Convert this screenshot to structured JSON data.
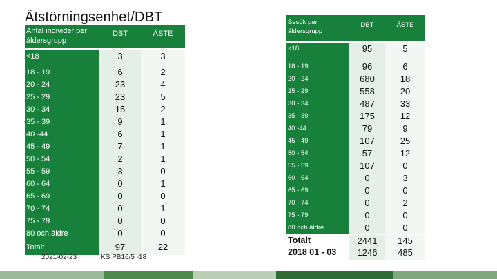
{
  "title": "Ätstörningsenhet/DBT",
  "left_table": {
    "header": {
      "label": "Antal individer per åldersgrupp",
      "col_dbt": "DBT",
      "col_aste": "ÄSTE"
    },
    "rows": [
      {
        "label": "<18",
        "dbt": "3",
        "aste": "3"
      },
      {
        "label": "18 - 19",
        "dbt": "6",
        "aste": "2"
      },
      {
        "label": "20 - 24",
        "dbt": "23",
        "aste": "4"
      },
      {
        "label": "25 - 29",
        "dbt": "23",
        "aste": "5"
      },
      {
        "label": "30 - 34",
        "dbt": "15",
        "aste": "2"
      },
      {
        "label": "35 - 39",
        "dbt": "9",
        "aste": "1"
      },
      {
        "label": "40 -44",
        "dbt": "6",
        "aste": "1"
      },
      {
        "label": "45 - 49",
        "dbt": "7",
        "aste": "1"
      },
      {
        "label": "50 - 54",
        "dbt": "2",
        "aste": "1"
      },
      {
        "label": "55 - 59",
        "dbt": "3",
        "aste": "0"
      },
      {
        "label": "60 - 64",
        "dbt": "0",
        "aste": "1"
      },
      {
        "label": "65 - 69",
        "dbt": "0",
        "aste": "0"
      },
      {
        "label": "70 - 74",
        "dbt": "0",
        "aste": "1"
      },
      {
        "label": "75 - 79",
        "dbt": "0",
        "aste": "0"
      },
      {
        "label": "80 och äldre",
        "dbt": "0",
        "aste": "0"
      }
    ],
    "total": {
      "label": "Totalt",
      "dbt": "97",
      "aste": "22"
    }
  },
  "footer": {
    "date": "2021-02-23",
    "ref": "KS PB16/5 -18"
  },
  "right_table": {
    "header": {
      "label": "Besök per åldersgrupp",
      "col_dbt": "DBT",
      "col_aste": "ÄSTE"
    },
    "rows": [
      {
        "label": "<18",
        "dbt": "95",
        "aste": "5"
      },
      {
        "label": "18 - 19",
        "dbt": "96",
        "aste": "6"
      },
      {
        "label": "20 - 24",
        "dbt": "680",
        "aste": "18"
      },
      {
        "label": "25 - 29",
        "dbt": "558",
        "aste": "20"
      },
      {
        "label": "30 - 34",
        "dbt": "487",
        "aste": "33"
      },
      {
        "label": "35 - 39",
        "dbt": "175",
        "aste": "12"
      },
      {
        "label": "40 -44",
        "dbt": "79",
        "aste": "9"
      },
      {
        "label": "45 - 49",
        "dbt": "107",
        "aste": "25"
      },
      {
        "label": "50 - 54",
        "dbt": "57",
        "aste": "12"
      },
      {
        "label": "55 - 59",
        "dbt": "107",
        "aste": "0"
      },
      {
        "label": "60 - 64",
        "dbt": "0",
        "aste": "3"
      },
      {
        "label": "65 - 69",
        "dbt": "0",
        "aste": "0"
      },
      {
        "label": "70 - 74",
        "dbt": "0",
        "aste": "2"
      },
      {
        "label": "75 - 79",
        "dbt": "0",
        "aste": "0"
      },
      {
        "label": "80 och äldre",
        "dbt": "0",
        "aste": "0"
      }
    ],
    "total": {
      "label_line1": "Totalt",
      "label_line2": "2018 01 - 03",
      "dbt_1": "2441",
      "aste_1": "145",
      "dbt_2": "1246",
      "aste_2": "485"
    }
  },
  "colors": {
    "header_green": "#17803a",
    "cell_light": "#e4efe7",
    "cell_lighter": "#f2f7f3"
  }
}
